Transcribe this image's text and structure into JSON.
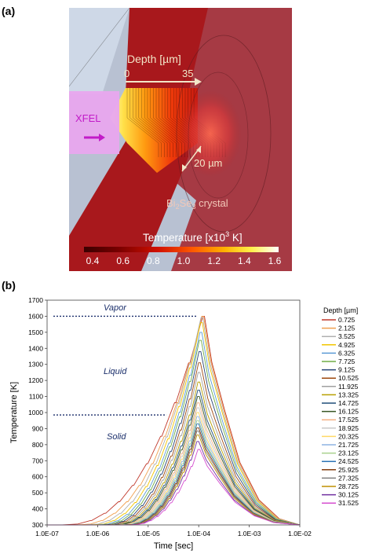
{
  "panel_a": {
    "label": "(a)",
    "xfel_label": "XFEL",
    "depth_label": "Depth [µm]",
    "depth_start": "0",
    "depth_end": "35",
    "scale_label": "20 µm",
    "crystal_label": {
      "base": "Bi",
      "sub1": "2",
      "mid": "Se",
      "sub2": "3",
      "rest": " crystal"
    },
    "colorbar": {
      "title": "Temperature [x10",
      "title_sup": "3",
      "title_end": " K]",
      "ticks": [
        "0.4",
        "0.6",
        "0.8",
        "1.0",
        "1.2",
        "1.4",
        "1.6"
      ]
    },
    "colors": {
      "background": "#b2bdcf",
      "crystal_dark": "#a8181c",
      "xfel": "#e8a6ee",
      "xfel_text": "#c21cc8",
      "arrow": "#f2e6c8"
    }
  },
  "panel_b": {
    "label": "(b)",
    "region_labels": [
      "Vapor",
      "Liquid",
      "Solid"
    ],
    "legend_title": "Depth [µm]"
  },
  "chart_data": {
    "type": "line",
    "xlabel": "Time [sec]",
    "ylabel": "Temperature [K]",
    "xscale": "log",
    "xlim": [
      1e-07,
      0.01
    ],
    "ylim": [
      300,
      1700
    ],
    "x_ticks": [
      "1.0E-07",
      "1.0E-06",
      "1.0E-05",
      "1.0E-04",
      "1.0E-03",
      "1.0E-02"
    ],
    "y_ticks": [
      300,
      400,
      500,
      600,
      700,
      800,
      900,
      1000,
      1100,
      1200,
      1300,
      1400,
      1500,
      1600,
      1700
    ],
    "grid": false,
    "legend_position": "right",
    "reference_lines": [
      {
        "label": "Vapor",
        "y": 1600,
        "x_end": 9e-05
      },
      {
        "label": "Solid",
        "y": 985,
        "x_end": 2.3e-05
      }
    ],
    "series": [
      {
        "name": "0.725",
        "color": "#c0392b",
        "peak": 1600,
        "t_peak": 0.00013
      },
      {
        "name": "2.125",
        "color": "#f0a050",
        "peak": 1600,
        "t_peak": 0.000125
      },
      {
        "name": "3.525",
        "color": "#b0b0b0",
        "peak": 1590,
        "t_peak": 0.00012
      },
      {
        "name": "4.925",
        "color": "#f2c500",
        "peak": 1560,
        "t_peak": 0.000118
      },
      {
        "name": "6.325",
        "color": "#5b9bd5",
        "peak": 1500,
        "t_peak": 0.000115
      },
      {
        "name": "7.725",
        "color": "#70ad47",
        "peak": 1450,
        "t_peak": 0.000112
      },
      {
        "name": "9.125",
        "color": "#264478",
        "peak": 1380,
        "t_peak": 0.00011
      },
      {
        "name": "10.525",
        "color": "#9e480e",
        "peak": 1310,
        "t_peak": 0.000108
      },
      {
        "name": "11.925",
        "color": "#a0a0a0",
        "peak": 1250,
        "t_peak": 0.000106
      },
      {
        "name": "13.325",
        "color": "#b8a000",
        "peak": 1190,
        "t_peak": 0.000105
      },
      {
        "name": "14.725",
        "color": "#1f4e79",
        "peak": 1140,
        "t_peak": 0.000104
      },
      {
        "name": "16.125",
        "color": "#375623",
        "peak": 1100,
        "t_peak": 0.000103
      },
      {
        "name": "17.525",
        "color": "#f4b183",
        "peak": 1060,
        "t_peak": 0.000102
      },
      {
        "name": "18.925",
        "color": "#c9c9c9",
        "peak": 1030,
        "t_peak": 0.000101
      },
      {
        "name": "20.325",
        "color": "#ffd966",
        "peak": 1000,
        "t_peak": 0.0001
      },
      {
        "name": "21.725",
        "color": "#8eb4e3",
        "peak": 975,
        "t_peak": 0.0001
      },
      {
        "name": "23.125",
        "color": "#a9d18e",
        "peak": 950,
        "t_peak": 0.0001
      },
      {
        "name": "24.525",
        "color": "#2e75b6",
        "peak": 930,
        "t_peak": 0.0001
      },
      {
        "name": "25.925",
        "color": "#843c0c",
        "peak": 905,
        "t_peak": 0.0001
      },
      {
        "name": "27.325",
        "color": "#7f7f7f",
        "peak": 885,
        "t_peak": 0.0001
      },
      {
        "name": "28.725",
        "color": "#bf9000",
        "peak": 860,
        "t_peak": 0.0001
      },
      {
        "name": "30.125",
        "color": "#7030a0",
        "peak": 820,
        "t_peak": 0.0001
      },
      {
        "name": "31.525",
        "color": "#d64fd0",
        "peak": 770,
        "t_peak": 0.000105
      }
    ]
  }
}
